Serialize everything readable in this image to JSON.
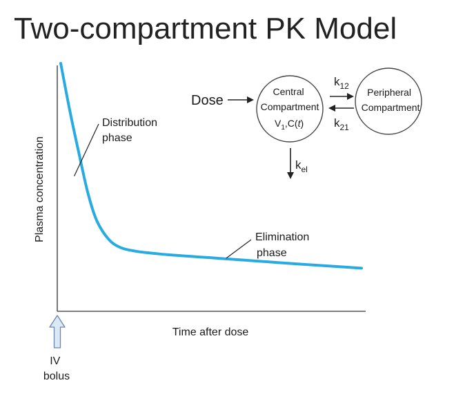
{
  "title": "Two-compartment PK Model",
  "chart_data": {
    "type": "line",
    "title": "Two-compartment PK Model",
    "xlabel": "Time after dose",
    "ylabel": "Plasma concentration",
    "grid": false,
    "series": [
      {
        "x": [
          0,
          0.3,
          0.6,
          0.9,
          1.2,
          1.6,
          2.0,
          2.5,
          3.0,
          3.5,
          4.0,
          5.0,
          6.0,
          8.0,
          10.0
        ],
        "y": [
          100,
          80,
          62,
          45,
          33,
          25,
          21.5,
          20,
          19.2,
          18.6,
          18.1,
          17.2,
          16.3,
          14.5,
          12.8
        ],
        "color": "#29abe2"
      }
    ],
    "xlim": [
      0,
      10
    ],
    "ylim": [
      0,
      100
    ],
    "annotations": [
      {
        "label_line1": "Distribution",
        "label_line2": "phase",
        "x": 0.45,
        "y": 52
      },
      {
        "label_line1": "Elimination",
        "label_line2": "phase",
        "x": 5.5,
        "y": 17.0
      }
    ],
    "dose_marker": {
      "label_line1": "IV",
      "label_line2": "bolus",
      "x": 0
    }
  },
  "diagram": {
    "dose_label": "Dose",
    "central": {
      "line1": "Central",
      "line2": "Compartment",
      "line3_v": "V",
      "line3_v_sub": "1",
      "line3_c": ",C(",
      "line3_t": "t",
      "line3_close": ")"
    },
    "peripheral": {
      "line1": "Peripheral",
      "line2": "Compartment"
    },
    "k12": {
      "base": "k",
      "sub": "12"
    },
    "k21": {
      "base": "k",
      "sub": "21"
    },
    "kel": {
      "base": "k",
      "sub": "el"
    }
  }
}
